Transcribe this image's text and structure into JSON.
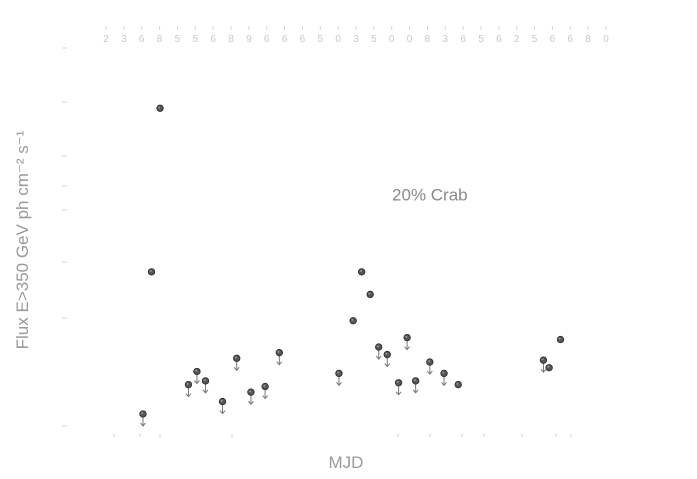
{
  "chart_data": {
    "type": "scatter",
    "title": "",
    "xlabel": "MJD",
    "ylabel": "Flux E>350 GeV ph cm⁻² s⁻¹",
    "xlim": [
      0,
      100
    ],
    "ylim": [
      0,
      100
    ],
    "grid": false,
    "annotations": [
      {
        "text": "20% Crab",
        "x": 63,
        "y": 60
      }
    ],
    "top_axis_ticks": [
      "2",
      "3",
      "6",
      "8",
      "5",
      "5",
      "6",
      "8",
      "9",
      "6",
      "6",
      "6",
      "5",
      "0",
      "3",
      "5",
      "0",
      "0",
      "8",
      "3",
      "6",
      "5",
      "6",
      "2",
      "5",
      "6",
      "6",
      "8",
      "0"
    ],
    "x_tick_labels": [
      "",
      "",
      "",
      "",
      "",
      "",
      "",
      "",
      "",
      ""
    ],
    "y_tick_labels": [
      "",
      "",
      "",
      "",
      "",
      "",
      "",
      ""
    ],
    "series": [
      {
        "points": [
          {
            "x": 12.5,
            "y": 3.2,
            "upper_limit": true
          },
          {
            "x": 14.0,
            "y": 41.0,
            "upper_limit": false
          },
          {
            "x": 15.5,
            "y": 84.5,
            "upper_limit": false
          },
          {
            "x": 20.5,
            "y": 11.0,
            "upper_limit": true
          },
          {
            "x": 22.0,
            "y": 14.5,
            "upper_limit": true
          },
          {
            "x": 23.5,
            "y": 12.0,
            "upper_limit": true
          },
          {
            "x": 26.5,
            "y": 6.5,
            "upper_limit": true
          },
          {
            "x": 29.0,
            "y": 18.0,
            "upper_limit": true
          },
          {
            "x": 31.5,
            "y": 9.0,
            "upper_limit": true
          },
          {
            "x": 34.0,
            "y": 10.5,
            "upper_limit": true
          },
          {
            "x": 36.5,
            "y": 19.5,
            "upper_limit": true
          },
          {
            "x": 47.0,
            "y": 14.0,
            "upper_limit": true
          },
          {
            "x": 49.5,
            "y": 28.0,
            "upper_limit": false
          },
          {
            "x": 51.0,
            "y": 41.0,
            "upper_limit": false
          },
          {
            "x": 52.5,
            "y": 35.0,
            "upper_limit": false
          },
          {
            "x": 54.0,
            "y": 21.0,
            "upper_limit": true
          },
          {
            "x": 55.5,
            "y": 19.0,
            "upper_limit": true
          },
          {
            "x": 57.5,
            "y": 11.5,
            "upper_limit": true
          },
          {
            "x": 59.0,
            "y": 23.5,
            "upper_limit": true
          },
          {
            "x": 60.5,
            "y": 12.0,
            "upper_limit": true
          },
          {
            "x": 63.0,
            "y": 17.0,
            "upper_limit": true
          },
          {
            "x": 65.5,
            "y": 14.0,
            "upper_limit": true
          },
          {
            "x": 68.0,
            "y": 11.0,
            "upper_limit": false
          },
          {
            "x": 83.0,
            "y": 17.5,
            "upper_limit": true
          },
          {
            "x": 84.0,
            "y": 15.5,
            "upper_limit": false
          },
          {
            "x": 86.0,
            "y": 23.0,
            "upper_limit": false
          }
        ]
      }
    ]
  }
}
